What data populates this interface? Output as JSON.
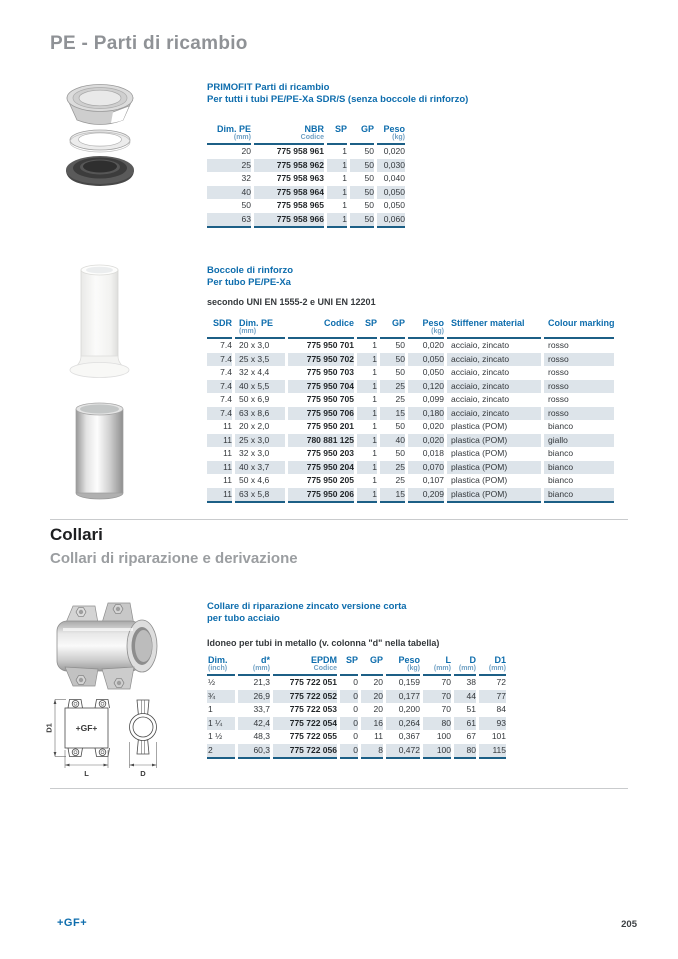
{
  "page": {
    "title": "PE - Parti di ricambio",
    "footer_logo": "+GF+",
    "page_number": "205"
  },
  "colors": {
    "accent_blue": "#0e6dad",
    "rule_blue": "#1c5f86",
    "row_shade": "#dde4ea",
    "title_gray": "#8f9296"
  },
  "section1": {
    "heading_line1": "PRIMOFIT Parti di ricambio",
    "heading_line2": "Per tutti i tubi PE/PE-Xa SDR/S (senza boccole di rinforzo)",
    "table": {
      "headers": [
        [
          "Dim. PE",
          "(mm)"
        ],
        [
          "NBR",
          "Codice"
        ],
        [
          "SP",
          ""
        ],
        [
          "GP",
          ""
        ],
        [
          "Peso",
          "(kg)"
        ]
      ],
      "rows": [
        [
          "20",
          "775 958 961",
          "1",
          "50",
          "0,020"
        ],
        [
          "25",
          "775 958 962",
          "1",
          "50",
          "0,030"
        ],
        [
          "32",
          "775 958 963",
          "1",
          "50",
          "0,040"
        ],
        [
          "40",
          "775 958 964",
          "1",
          "50",
          "0,050"
        ],
        [
          "50",
          "775 958 965",
          "1",
          "50",
          "0,050"
        ],
        [
          "63",
          "775 958 966",
          "1",
          "50",
          "0,060"
        ]
      ]
    }
  },
  "section2": {
    "heading_line1": "Boccole di rinforzo",
    "heading_line2": "Per tubo PE/PE-Xa",
    "note": "secondo UNI EN 1555-2 e UNI EN 12201",
    "table": {
      "headers": [
        [
          "SDR",
          ""
        ],
        [
          "Dim. PE",
          "(mm)"
        ],
        [
          "Codice",
          ""
        ],
        [
          "SP",
          ""
        ],
        [
          "GP",
          ""
        ],
        [
          "Peso",
          "(kg)"
        ],
        [
          "Stiffener material",
          ""
        ],
        [
          "Colour marking",
          ""
        ]
      ],
      "rows": [
        [
          "7.4",
          "20 x 3,0",
          "775 950 701",
          "1",
          "50",
          "0,020",
          "acciaio, zincato",
          "rosso"
        ],
        [
          "7.4",
          "25 x 3,5",
          "775 950 702",
          "1",
          "50",
          "0,050",
          "acciaio, zincato",
          "rosso"
        ],
        [
          "7.4",
          "32 x 4,4",
          "775 950 703",
          "1",
          "50",
          "0,050",
          "acciaio, zincato",
          "rosso"
        ],
        [
          "7.4",
          "40 x 5,5",
          "775 950 704",
          "1",
          "25",
          "0,120",
          "acciaio, zincato",
          "rosso"
        ],
        [
          "7.4",
          "50 x 6,9",
          "775 950 705",
          "1",
          "25",
          "0,099",
          "acciaio, zincato",
          "rosso"
        ],
        [
          "7.4",
          "63 x 8,6",
          "775 950 706",
          "1",
          "15",
          "0,180",
          "acciaio, zincato",
          "rosso"
        ],
        [
          "11",
          "20 x 2,0",
          "775 950 201",
          "1",
          "50",
          "0,020",
          "plastica (POM)",
          "bianco"
        ],
        [
          "11",
          "25 x 3,0",
          "780 881 125",
          "1",
          "40",
          "0,020",
          "plastica (POM)",
          "giallo"
        ],
        [
          "11",
          "32 x 3,0",
          "775 950 203",
          "1",
          "50",
          "0,018",
          "plastica (POM)",
          "bianco"
        ],
        [
          "11",
          "40 x 3,7",
          "775 950 204",
          "1",
          "25",
          "0,070",
          "plastica (POM)",
          "bianco"
        ],
        [
          "11",
          "50 x 4,6",
          "775 950 205",
          "1",
          "25",
          "0,107",
          "plastica (POM)",
          "bianco"
        ],
        [
          "11",
          "63 x 5,8",
          "775 950 206",
          "1",
          "15",
          "0,209",
          "plastica (POM)",
          "bianco"
        ]
      ]
    }
  },
  "collari": {
    "title": "Collari",
    "subtitle": "Collari di riparazione e derivazione"
  },
  "section3": {
    "heading_line1": "Collare di riparazione zincato versione corta",
    "heading_line2": "per tubo acciaio",
    "note": "Idoneo per tubi in metallo (v. colonna \"d\" nella tabella)",
    "drawing": {
      "gf_mark": "+GF+",
      "dim_d1": "D1",
      "dim_l": "L",
      "dim_d": "D"
    },
    "table": {
      "headers": [
        [
          "Dim.",
          "(inch)"
        ],
        [
          "d*",
          "(mm)"
        ],
        [
          "EPDM",
          "Codice"
        ],
        [
          "SP",
          ""
        ],
        [
          "GP",
          ""
        ],
        [
          "Peso",
          "(kg)"
        ],
        [
          "L",
          "(mm)"
        ],
        [
          "D",
          "(mm)"
        ],
        [
          "D1",
          "(mm)"
        ]
      ],
      "rows": [
        [
          "½",
          "21,3",
          "775 722 051",
          "0",
          "20",
          "0,159",
          "70",
          "38",
          "72"
        ],
        [
          "¾",
          "26,9",
          "775 722 052",
          "0",
          "20",
          "0,177",
          "70",
          "44",
          "77"
        ],
        [
          "1",
          "33,7",
          "775 722 053",
          "0",
          "20",
          "0,200",
          "70",
          "51",
          "84"
        ],
        [
          "1 ¼",
          "42,4",
          "775 722 054",
          "0",
          "16",
          "0,264",
          "80",
          "61",
          "93"
        ],
        [
          "1 ½",
          "48,3",
          "775 722 055",
          "0",
          "11",
          "0,367",
          "100",
          "67",
          "101"
        ],
        [
          "2",
          "60,3",
          "775 722 056",
          "0",
          "8",
          "0,472",
          "100",
          "80",
          "115"
        ]
      ]
    }
  }
}
